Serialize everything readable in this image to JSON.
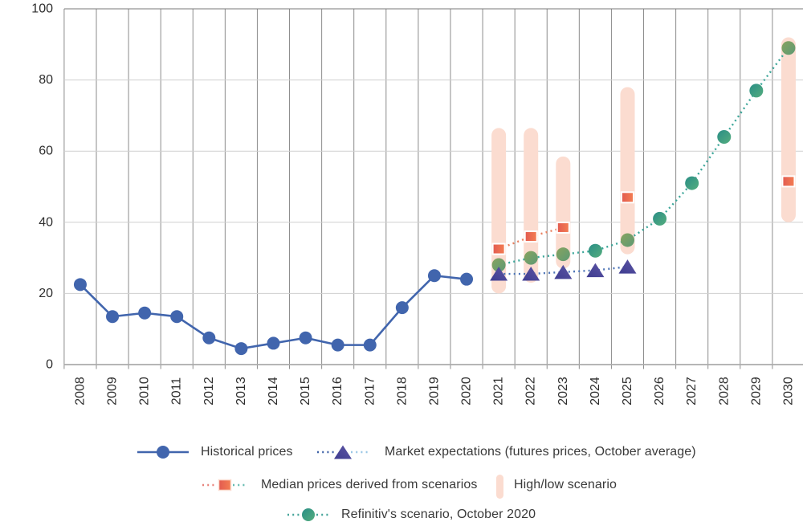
{
  "chart_data": {
    "type": "line",
    "title": "",
    "xlabel": "",
    "ylabel": "",
    "x_years": [
      2008,
      2009,
      2010,
      2011,
      2012,
      2013,
      2014,
      2015,
      2016,
      2017,
      2018,
      2019,
      2020,
      2021,
      2022,
      2023,
      2024,
      2025,
      2026,
      2027,
      2028,
      2029,
      2030
    ],
    "yticks": [
      0,
      20,
      40,
      60,
      80,
      100
    ],
    "ylim": [
      0,
      100
    ],
    "grid": "on",
    "legend_position": "bottom",
    "colors": {
      "grid_v": "#8c8c8c",
      "grid_h": "#cfcfcf",
      "grid_top": "#787878",
      "axis": "#ababab",
      "tick_text": "#2e2e2e"
    },
    "series": [
      {
        "name": "Historical prices",
        "marker": "circle",
        "line": "solid",
        "color": "#4165ad",
        "x": [
          2008,
          2009,
          2010,
          2011,
          2012,
          2013,
          2014,
          2015,
          2016,
          2017,
          2018,
          2019,
          2020
        ],
        "values": [
          22.5,
          13.5,
          14.5,
          13.5,
          7.5,
          4.5,
          6,
          7.5,
          5.5,
          5.5,
          16,
          25,
          24
        ]
      },
      {
        "name": "Market expectations (futures prices, October average)",
        "marker": "triangle",
        "line": "dotted",
        "color": "#3e3c90",
        "color2": "#5d55a4",
        "line_color": "#4d74b6",
        "legend_dots": [
          "#3f62a8",
          "#9ac7e6"
        ],
        "x": [
          2021,
          2022,
          2023,
          2024,
          2025
        ],
        "values": [
          25.5,
          25.5,
          26,
          26.5,
          27.5
        ]
      },
      {
        "name": "Median prices derived from scenarios",
        "marker": "square",
        "line": "dotted",
        "color": "#e25a50",
        "color2": "#f47e52",
        "line_color": "#ea8160",
        "legend_dots": [
          "#e8837b",
          "#66bcb2"
        ],
        "x": [
          2021,
          2022,
          2023,
          2025,
          2030
        ],
        "values": [
          32.5,
          36,
          38.5,
          47,
          51.5
        ],
        "segments": [
          [
            2021,
            2022,
            2023
          ]
        ]
      },
      {
        "name": "High/low scenario",
        "marker": "range-bar",
        "color": "#fbdcd0",
        "x": [
          2021,
          2022,
          2023,
          2025,
          2030
        ],
        "low": [
          20,
          23,
          27,
          31,
          40
        ],
        "high": [
          66.5,
          66.5,
          58.5,
          78,
          92
        ]
      },
      {
        "name": "Refinitiv's scenario, October 2020",
        "marker": "circle",
        "line": "dotted",
        "color": "#2a8e86",
        "color2": "#55ad7e",
        "color_on_bar": "#87a35f",
        "color_on_bar2": "#5d9a74",
        "line_color": "#3ba699",
        "legend_dots": [
          "#46a59a",
          "#46a59a"
        ],
        "x": [
          2021,
          2022,
          2023,
          2024,
          2025,
          2026,
          2027,
          2028,
          2029,
          2030
        ],
        "values": [
          28,
          30,
          31,
          32,
          35,
          41,
          51,
          64,
          77,
          89
        ]
      }
    ]
  }
}
